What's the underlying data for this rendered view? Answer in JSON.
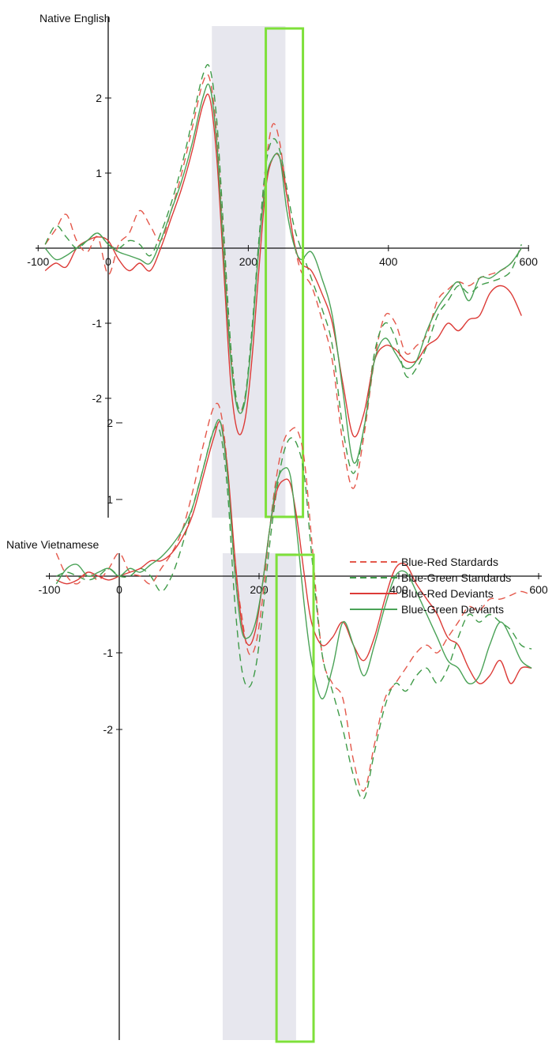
{
  "chart_data": [
    {
      "type": "line",
      "title": "Native English",
      "xlabel": "",
      "ylabel": "",
      "xlim": [
        -100,
        600
      ],
      "ylim": [
        -3.5,
        2.95
      ],
      "x_ticks": [
        "-100",
        "0",
        "200",
        "400",
        "600"
      ],
      "y_ticks": [
        "2",
        "1",
        "-1",
        "-2"
      ],
      "shaded_window": [
        148,
        253
      ],
      "highlight_window": [
        225,
        278
      ],
      "series": [
        {
          "name": "Blue-Red Stardards",
          "color": "#e4584b",
          "dash": "dashed",
          "x": [
            -90,
            -75,
            -60,
            -45,
            -30,
            -15,
            0,
            15,
            30,
            45,
            60,
            75,
            90,
            105,
            120,
            135,
            145,
            155,
            165,
            175,
            185,
            195,
            205,
            215,
            225,
            235,
            245,
            255,
            265,
            275,
            290,
            305,
            320,
            335,
            350,
            365,
            380,
            395,
            410,
            425,
            440,
            455,
            470,
            485,
            500,
            515,
            530,
            545,
            560,
            575,
            590
          ],
          "y": [
            0.05,
            0.25,
            0.45,
            0.1,
            -0.05,
            0.15,
            -0.35,
            0.05,
            0.2,
            0.5,
            0.3,
            0.1,
            0.5,
            1.0,
            1.6,
            2.2,
            2.25,
            1.5,
            0.0,
            -1.4,
            -2.15,
            -2.0,
            -1.2,
            0.0,
            1.1,
            1.65,
            1.4,
            0.7,
            0.1,
            -0.3,
            -0.5,
            -0.95,
            -1.5,
            -2.6,
            -3.2,
            -2.5,
            -1.5,
            -0.9,
            -1.0,
            -1.4,
            -1.3,
            -1.15,
            -0.7,
            -0.55,
            -0.45,
            -0.5,
            -0.4,
            -0.35,
            -0.3,
            -0.2,
            0.0
          ]
        },
        {
          "name": "Blue-Green Standards",
          "color": "#3f9b48",
          "dash": "dashed",
          "x": [
            -90,
            -75,
            -60,
            -45,
            -30,
            -15,
            0,
            15,
            30,
            45,
            60,
            75,
            90,
            105,
            120,
            135,
            145,
            155,
            165,
            175,
            185,
            195,
            205,
            215,
            225,
            235,
            245,
            255,
            265,
            275,
            290,
            305,
            320,
            335,
            350,
            365,
            380,
            395,
            410,
            425,
            440,
            455,
            470,
            485,
            500,
            515,
            530,
            545,
            560,
            575,
            590
          ],
          "y": [
            0.05,
            0.3,
            0.15,
            0.0,
            0.1,
            0.2,
            0.05,
            0.0,
            0.1,
            0.05,
            -0.1,
            0.2,
            0.6,
            1.1,
            1.7,
            2.3,
            2.4,
            1.7,
            0.2,
            -1.3,
            -2.1,
            -2.0,
            -1.1,
            0.1,
            1.1,
            1.45,
            1.3,
            0.8,
            0.3,
            0.0,
            -0.4,
            -0.8,
            -1.3,
            -2.4,
            -3.0,
            -2.4,
            -1.4,
            -1.0,
            -1.2,
            -1.7,
            -1.6,
            -1.3,
            -0.9,
            -0.7,
            -0.5,
            -0.6,
            -0.5,
            -0.45,
            -0.4,
            -0.3,
            0.05
          ]
        },
        {
          "name": "Blue-Red Deviants",
          "color": "#dc3b37",
          "dash": "solid",
          "x": [
            -90,
            -75,
            -60,
            -45,
            -30,
            -15,
            0,
            15,
            30,
            45,
            60,
            75,
            90,
            105,
            120,
            135,
            145,
            155,
            165,
            175,
            185,
            195,
            205,
            215,
            225,
            235,
            245,
            255,
            265,
            275,
            290,
            305,
            320,
            335,
            350,
            365,
            380,
            395,
            410,
            425,
            440,
            455,
            470,
            485,
            500,
            515,
            530,
            545,
            560,
            575,
            590
          ],
          "y": [
            -0.3,
            -0.2,
            -0.25,
            0.0,
            0.1,
            0.15,
            0.1,
            -0.15,
            -0.3,
            -0.2,
            -0.3,
            0.0,
            0.4,
            0.8,
            1.3,
            1.9,
            2.0,
            1.2,
            -0.3,
            -1.8,
            -2.45,
            -2.3,
            -1.5,
            -0.3,
            0.8,
            1.2,
            1.2,
            0.7,
            0.1,
            -0.2,
            -0.3,
            -0.6,
            -1.0,
            -1.8,
            -2.5,
            -2.2,
            -1.5,
            -1.3,
            -1.35,
            -1.5,
            -1.5,
            -1.3,
            -1.2,
            -1.0,
            -1.1,
            -0.95,
            -0.9,
            -0.6,
            -0.5,
            -0.6,
            -0.9
          ]
        },
        {
          "name": "Blue-Green Deviants",
          "color": "#4aa257",
          "dash": "solid",
          "x": [
            -90,
            -75,
            -60,
            -45,
            -30,
            -15,
            0,
            15,
            30,
            45,
            60,
            75,
            90,
            105,
            120,
            135,
            145,
            155,
            165,
            175,
            185,
            195,
            205,
            215,
            225,
            235,
            245,
            255,
            265,
            275,
            290,
            305,
            320,
            335,
            350,
            365,
            380,
            395,
            410,
            425,
            440,
            455,
            470,
            485,
            500,
            515,
            530,
            545,
            560,
            575,
            590
          ],
          "y": [
            0.0,
            -0.15,
            -0.1,
            0.0,
            0.1,
            0.2,
            0.05,
            -0.05,
            -0.1,
            -0.15,
            -0.2,
            0.1,
            0.5,
            0.9,
            1.4,
            2.0,
            2.15,
            1.4,
            -0.1,
            -1.5,
            -2.15,
            -2.05,
            -1.2,
            0.0,
            0.9,
            1.2,
            1.2,
            0.5,
            0.05,
            -0.15,
            -0.05,
            -0.4,
            -0.9,
            -1.9,
            -2.85,
            -2.4,
            -1.5,
            -1.2,
            -1.4,
            -1.6,
            -1.5,
            -1.1,
            -0.8,
            -0.6,
            -0.45,
            -0.7,
            -0.4,
            -0.4,
            -0.3,
            -0.2,
            0.0
          ]
        }
      ]
    },
    {
      "type": "line",
      "title": "Native Vietnamese",
      "xlabel": "",
      "ylabel": "",
      "xlim": [
        -100,
        600
      ],
      "ylim": [
        -3.5,
        2.95
      ],
      "x_ticks": [
        "-100",
        "0",
        "200",
        "400",
        "600"
      ],
      "y_ticks": [
        "2",
        "1",
        "-1",
        "-2"
      ],
      "shaded_window": [
        148,
        253
      ],
      "highlight_window": [
        225,
        278
      ],
      "legend": "top-right",
      "series": [
        {
          "name": "Blue-Red Stardards",
          "color": "#e4584b",
          "dash": "dashed",
          "x": [
            -90,
            -75,
            -60,
            -45,
            -30,
            -15,
            0,
            15,
            30,
            45,
            60,
            75,
            90,
            105,
            120,
            135,
            145,
            155,
            165,
            175,
            185,
            195,
            205,
            215,
            225,
            235,
            245,
            255,
            265,
            275,
            290,
            305,
            320,
            335,
            350,
            365,
            380,
            395,
            410,
            425,
            440,
            455,
            470,
            485,
            500,
            515,
            530,
            545,
            560,
            575,
            590
          ],
          "y": [
            0.3,
            0.0,
            -0.1,
            0.05,
            -0.05,
            0.1,
            0.3,
            0.05,
            0.0,
            -0.1,
            0.1,
            0.3,
            0.6,
            1.1,
            1.7,
            2.2,
            2.15,
            1.4,
            0.2,
            -0.5,
            -1.0,
            -0.9,
            -0.3,
            0.6,
            1.3,
            1.75,
            1.9,
            1.9,
            1.5,
            0.5,
            -1.0,
            -1.4,
            -1.6,
            -2.4,
            -2.8,
            -2.2,
            -1.6,
            -1.4,
            -1.2,
            -1.0,
            -0.9,
            -1.0,
            -0.8,
            -0.6,
            -0.4,
            -0.45,
            -0.3,
            -0.3,
            -0.25,
            -0.2,
            -0.25
          ]
        },
        {
          "name": "Blue-Green Standards",
          "color": "#3f9b48",
          "dash": "dashed",
          "x": [
            -90,
            -75,
            -60,
            -45,
            -30,
            -15,
            0,
            15,
            30,
            45,
            60,
            75,
            90,
            105,
            120,
            135,
            145,
            155,
            165,
            175,
            185,
            195,
            205,
            215,
            225,
            235,
            245,
            255,
            265,
            275,
            290,
            305,
            320,
            335,
            350,
            365,
            380,
            395,
            410,
            425,
            440,
            455,
            470,
            485,
            500,
            515,
            530,
            545,
            560,
            575,
            590
          ],
          "y": [
            0.0,
            0.05,
            0.0,
            -0.05,
            0.0,
            0.1,
            0.0,
            0.0,
            0.1,
            0.0,
            -0.2,
            0.0,
            0.4,
            0.9,
            1.4,
            1.9,
            1.85,
            1.1,
            -0.3,
            -1.2,
            -1.45,
            -1.2,
            -0.5,
            0.4,
            1.1,
            1.6,
            1.8,
            1.7,
            1.3,
            0.3,
            -1.0,
            -1.5,
            -2.0,
            -2.6,
            -2.9,
            -2.3,
            -1.7,
            -1.4,
            -1.5,
            -1.3,
            -1.2,
            -1.4,
            -1.2,
            -0.8,
            -0.5,
            -0.6,
            -0.5,
            -0.6,
            -0.7,
            -0.9,
            -0.95
          ]
        },
        {
          "name": "Blue-Red Deviants",
          "color": "#dc3b37",
          "dash": "solid",
          "x": [
            -90,
            -75,
            -60,
            -45,
            -30,
            -15,
            0,
            15,
            30,
            45,
            60,
            75,
            90,
            105,
            120,
            135,
            145,
            155,
            165,
            175,
            185,
            195,
            205,
            215,
            225,
            235,
            245,
            255,
            265,
            275,
            290,
            305,
            320,
            335,
            350,
            365,
            380,
            395,
            410,
            425,
            440,
            455,
            470,
            485,
            500,
            515,
            530,
            545,
            560,
            575,
            590
          ],
          "y": [
            -0.05,
            -0.1,
            -0.05,
            0.05,
            0.0,
            -0.05,
            0.0,
            0.05,
            0.1,
            0.2,
            0.2,
            0.3,
            0.5,
            0.8,
            1.3,
            1.8,
            2.0,
            1.4,
            0.3,
            -0.6,
            -0.9,
            -0.7,
            -0.1,
            0.6,
            1.1,
            1.25,
            1.2,
            0.7,
            0.0,
            -0.6,
            -0.9,
            -0.8,
            -0.6,
            -0.9,
            -1.1,
            -0.8,
            -0.3,
            0.1,
            0.15,
            -0.1,
            -0.3,
            -0.5,
            -0.8,
            -0.9,
            -1.2,
            -1.4,
            -1.3,
            -1.1,
            -1.4,
            -1.2,
            -1.2
          ]
        },
        {
          "name": "Blue-Green Deviants",
          "color": "#4aa257",
          "dash": "solid",
          "x": [
            -90,
            -75,
            -60,
            -45,
            -30,
            -15,
            0,
            15,
            30,
            45,
            60,
            75,
            90,
            105,
            120,
            135,
            145,
            155,
            165,
            175,
            185,
            195,
            205,
            215,
            225,
            235,
            245,
            255,
            265,
            275,
            290,
            305,
            320,
            335,
            350,
            365,
            380,
            395,
            410,
            425,
            440,
            455,
            470,
            485,
            500,
            515,
            530,
            545,
            560,
            575,
            590
          ],
          "y": [
            -0.1,
            0.1,
            0.15,
            0.0,
            0.05,
            0.1,
            0.0,
            0.1,
            0.05,
            0.15,
            0.25,
            0.4,
            0.6,
            0.9,
            1.4,
            1.9,
            2.0,
            1.3,
            0.1,
            -0.7,
            -0.8,
            -0.6,
            -0.1,
            0.6,
            1.2,
            1.4,
            1.3,
            0.5,
            -0.4,
            -1.1,
            -1.6,
            -1.2,
            -0.6,
            -0.9,
            -1.3,
            -0.9,
            -0.4,
            0.0,
            0.05,
            -0.2,
            -0.5,
            -0.8,
            -1.1,
            -1.2,
            -1.4,
            -1.3,
            -0.9,
            -0.6,
            -0.8,
            -1.1,
            -1.2
          ]
        }
      ]
    }
  ]
}
